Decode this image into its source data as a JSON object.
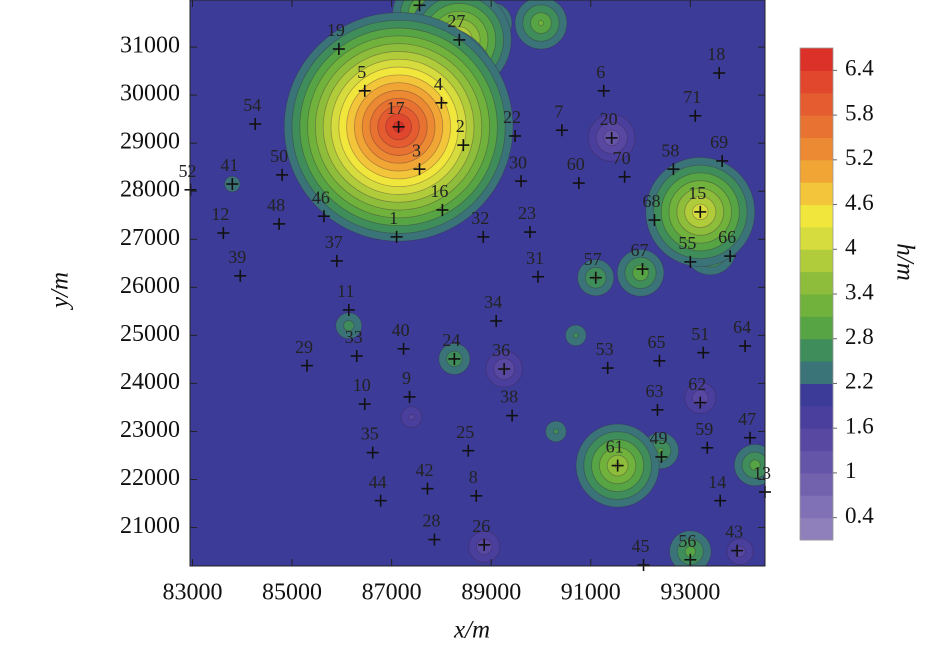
{
  "chart_data": {
    "type": "contour",
    "xlabel": "x/m",
    "ylabel": "y/m",
    "xlim": [
      82950,
      94500
    ],
    "ylim": [
      20200,
      31980
    ],
    "xticks": [
      83000,
      85000,
      87000,
      89000,
      91000,
      93000
    ],
    "yticks": [
      21000,
      22000,
      23000,
      24000,
      25000,
      26000,
      27000,
      28000,
      29000,
      30000,
      31000
    ],
    "colorbar": {
      "label": "h/m",
      "clim": [
        0.1,
        6.7
      ],
      "ticks": [
        0.4,
        1,
        1.6,
        2.2,
        2.8,
        3.4,
        4,
        4.6,
        5.2,
        5.8,
        6.4
      ],
      "colors": [
        "#8f7fbb",
        "#8070b5",
        "#7262ad",
        "#6555a8",
        "#5848a2",
        "#4a3f9d",
        "#3c3c98",
        "#3a7478",
        "#3f8d5a",
        "#56a444",
        "#70b23c",
        "#8dbd3a",
        "#b0cc3a",
        "#d6dc3e",
        "#f0e63c",
        "#f3c53a",
        "#f0a535",
        "#eb8a33",
        "#e77231",
        "#e45c2f",
        "#e0472c",
        "#dc3128"
      ]
    },
    "field": {
      "base": 2.0,
      "peaks": [
        {
          "x": 91420,
          "y": 29110,
          "h": 1.0
        },
        {
          "x": 89260,
          "y": 24300,
          "h": 1.2
        },
        {
          "x": 93200,
          "y": 23700,
          "h": 1.3
        },
        {
          "x": 87400,
          "y": 23300,
          "h": 1.5
        },
        {
          "x": 88860,
          "y": 20600,
          "h": 1.3
        },
        {
          "x": 94000,
          "y": 20500,
          "h": 1.4
        },
        {
          "x": 90000,
          "y": 31500,
          "h": 3.2
        },
        {
          "x": 89000,
          "y": 31500,
          "h": 3.0
        },
        {
          "x": 87700,
          "y": 31700,
          "h": 3.5
        },
        {
          "x": 88360,
          "y": 31150,
          "h": 4.2
        },
        {
          "x": 87900,
          "y": 30200,
          "h": 4.5
        },
        {
          "x": 87140,
          "y": 29340,
          "h": 6.6
        },
        {
          "x": 93400,
          "y": 26800,
          "h": 3.2
        },
        {
          "x": 93200,
          "y": 27570,
          "h": 4.3
        },
        {
          "x": 91100,
          "y": 26200,
          "h": 2.9
        },
        {
          "x": 92000,
          "y": 26300,
          "h": 3.1
        },
        {
          "x": 90700,
          "y": 25000,
          "h": 2.6
        },
        {
          "x": 90300,
          "y": 23000,
          "h": 2.6
        },
        {
          "x": 92400,
          "y": 22600,
          "h": 2.9
        },
        {
          "x": 91540,
          "y": 22290,
          "h": 3.8
        },
        {
          "x": 88260,
          "y": 24510,
          "h": 2.8
        },
        {
          "x": 86140,
          "y": 25200,
          "h": 2.7
        },
        {
          "x": 83800,
          "y": 28150,
          "h": 2.5
        },
        {
          "x": 94300,
          "y": 22300,
          "h": 3.0
        },
        {
          "x": 93000,
          "y": 20500,
          "h": 3.0
        }
      ]
    },
    "stations": {
      "labels": [
        "1",
        "2",
        "3",
        "4",
        "5",
        "6",
        "7",
        "8",
        "9",
        "10",
        "11",
        "12",
        "13",
        "14",
        "15",
        "16",
        "17",
        "18",
        "19",
        "20",
        "21",
        "22",
        "23",
        "24",
        "25",
        "26",
        "27",
        "28",
        "29",
        "30",
        "31",
        "32",
        "33",
        "34",
        "35",
        "36",
        "37",
        "38",
        "39",
        "40",
        "41",
        "42",
        "43",
        "44",
        "45",
        "46",
        "47",
        "48",
        "49",
        "50",
        "51",
        "52",
        "53",
        "54",
        "55",
        "56",
        "57",
        "58",
        "59",
        "60",
        "61",
        "62",
        "63",
        "64",
        "65",
        "66",
        "67",
        "68",
        "69",
        "70",
        "71"
      ],
      "x": [
        87100,
        88440,
        87560,
        88000,
        86460,
        91260,
        90420,
        88700,
        87360,
        86460,
        86140,
        83620,
        94500,
        93600,
        93200,
        88020,
        87140,
        93580,
        85940,
        91420,
        87560,
        89480,
        89780,
        88260,
        88540,
        88860,
        88360,
        87860,
        85300,
        89600,
        89940,
        88840,
        86300,
        89100,
        86620,
        89260,
        85900,
        89420,
        83960,
        87240,
        83800,
        87720,
        93940,
        86780,
        92060,
        85640,
        94200,
        84740,
        92420,
        84800,
        93260,
        82960,
        91340,
        84260,
        93000,
        93000,
        91100,
        92660,
        93340,
        90760,
        91540,
        93200,
        92340,
        94100,
        92380,
        93800,
        92040,
        92280,
        93640,
        91680,
        93100
      ],
      "y": [
        27050,
        28960,
        28460,
        29840,
        30090,
        30090,
        29270,
        21660,
        23720,
        23570,
        25530,
        27130,
        21740,
        21560,
        27570,
        27610,
        29340,
        30460,
        30960,
        29110,
        31870,
        29150,
        27150,
        24510,
        22600,
        20640,
        31150,
        20750,
        24370,
        28210,
        26220,
        27050,
        24570,
        25300,
        22560,
        24300,
        26550,
        23330,
        26240,
        24720,
        28150,
        21810,
        20520,
        21560,
        20220,
        27480,
        22870,
        27320,
        22470,
        28340,
        24640,
        28030,
        24320,
        29400,
        26530,
        20330,
        26200,
        28460,
        22660,
        28170,
        22290,
        23600,
        23450,
        24780,
        24470,
        26650,
        26380,
        27400,
        28630,
        28300,
        29570
      ]
    }
  }
}
